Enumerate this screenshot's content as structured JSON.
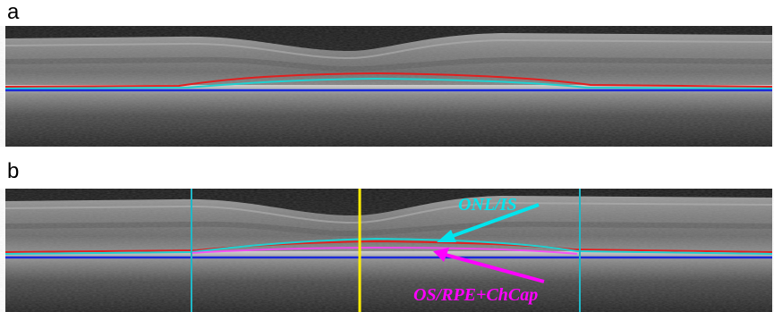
{
  "panels": [
    {
      "label": "a"
    },
    {
      "label": "b"
    }
  ],
  "annotations": {
    "onl_is": {
      "text": "ONL/IS",
      "color": "#00e5ee"
    },
    "os_rpe": {
      "text": "OS/RPE+ChCap",
      "color": "#ff00ff"
    }
  },
  "colors": {
    "boundary_red": "#e02020",
    "boundary_cyan": "#20d0d0",
    "boundary_blue": "#1a2ad8",
    "marker_cyan": "#1fb8c8",
    "marker_yellow": "#ffee00"
  }
}
